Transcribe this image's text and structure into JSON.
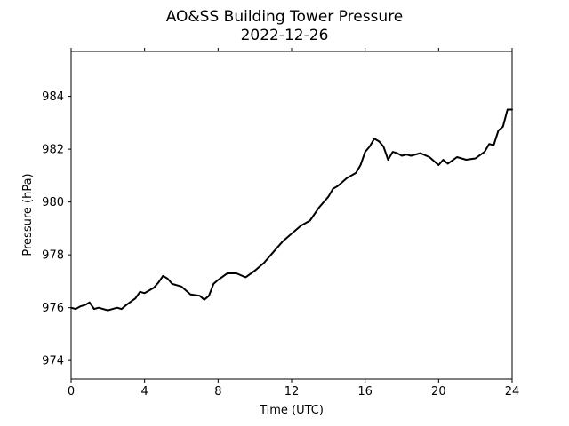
{
  "chart_data": {
    "type": "line",
    "title": "AO&SS Building Tower Pressure",
    "subtitle": "2022-12-26",
    "xlabel": "Time (UTC)",
    "ylabel": "Pressure (hPa)",
    "xlim": [
      0,
      24
    ],
    "ylim": [
      973.3,
      985.7
    ],
    "xticks": [
      0,
      4,
      8,
      12,
      16,
      20,
      24
    ],
    "yticks": [
      974,
      976,
      978,
      980,
      982,
      984
    ],
    "grid": false,
    "color": "#000000",
    "series": [
      {
        "x": [
          0,
          0.25,
          0.5,
          0.75,
          1.0,
          1.25,
          1.5,
          2.0,
          2.5,
          2.75,
          3.0,
          3.5,
          3.75,
          4.0,
          4.5,
          4.75,
          5.0,
          5.25,
          5.5,
          6.0,
          6.5,
          7.0,
          7.25,
          7.5,
          7.75,
          8.0,
          8.5,
          9.0,
          9.5,
          10.0,
          10.5,
          11.0,
          11.5,
          12.0,
          12.5,
          13.0,
          13.5,
          14.0,
          14.25,
          14.5,
          15.0,
          15.5,
          15.75,
          16.0,
          16.25,
          16.5,
          16.75,
          17.0,
          17.25,
          17.5,
          17.75,
          18.0,
          18.25,
          18.5,
          19.0,
          19.5,
          20.0,
          20.25,
          20.5,
          21.0,
          21.5,
          22.0,
          22.5,
          22.75,
          23.0,
          23.25,
          23.5,
          23.75,
          24.0
        ],
        "y": [
          976.0,
          975.95,
          976.05,
          976.1,
          976.2,
          975.95,
          976.0,
          975.9,
          976.0,
          975.95,
          976.1,
          976.35,
          976.6,
          976.55,
          976.75,
          976.95,
          977.2,
          977.1,
          976.9,
          976.8,
          976.5,
          976.45,
          976.3,
          976.45,
          976.9,
          977.05,
          977.3,
          977.3,
          977.15,
          977.4,
          977.7,
          978.1,
          978.5,
          978.8,
          979.1,
          979.3,
          979.8,
          980.2,
          980.5,
          980.6,
          980.9,
          981.1,
          981.4,
          981.9,
          982.1,
          982.4,
          982.3,
          982.1,
          981.6,
          981.9,
          981.85,
          981.75,
          981.8,
          981.75,
          981.85,
          981.7,
          981.4,
          981.6,
          981.45,
          981.7,
          981.6,
          981.65,
          981.9,
          982.2,
          982.15,
          982.7,
          982.85,
          983.5,
          983.5
        ]
      }
    ]
  }
}
